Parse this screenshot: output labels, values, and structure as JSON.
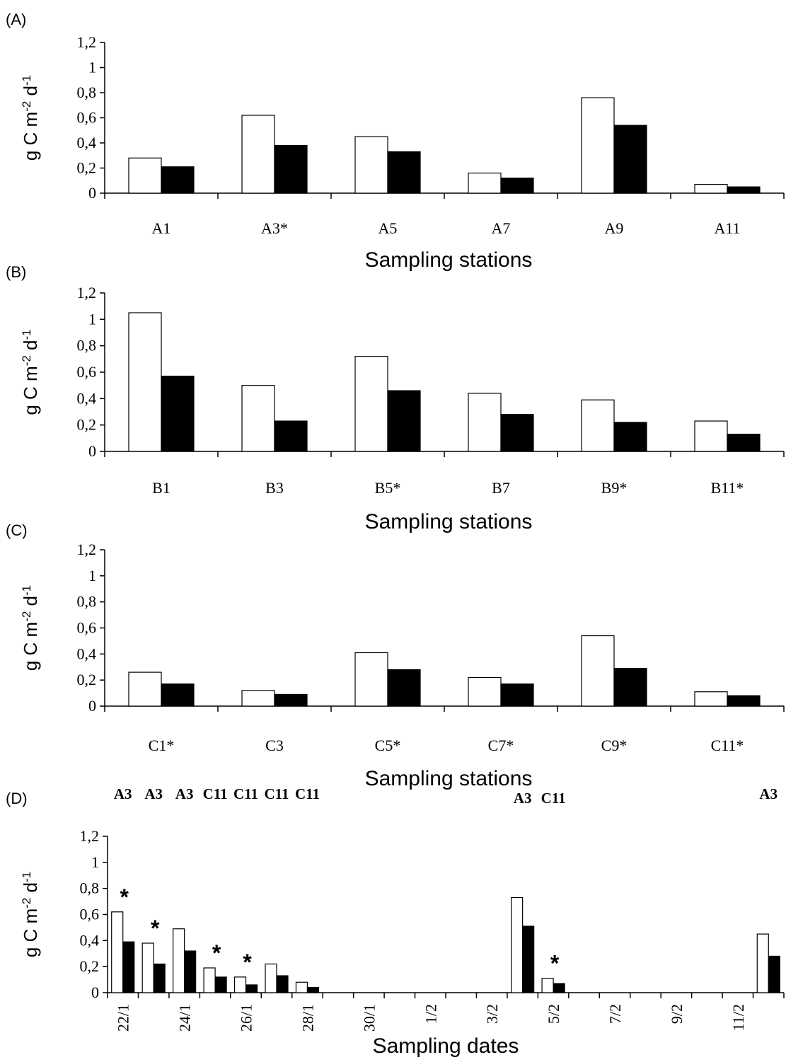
{
  "colors": {
    "open": "#ffffff",
    "filled": "#000000",
    "stroke": "#000000"
  },
  "chart_data": [
    {
      "type": "bar",
      "panel_label": "(A)",
      "categories": [
        "A1",
        "A3*",
        "A5",
        "A7",
        "A9",
        "A11"
      ],
      "series": [
        {
          "values": [
            0.28,
            0.62,
            0.45,
            0.16,
            0.76,
            0.07
          ]
        },
        {
          "values": [
            0.21,
            0.38,
            0.33,
            0.12,
            0.54,
            0.05
          ]
        }
      ],
      "ylabel": "g C m-2 d-1",
      "xlabel": "Sampling stations",
      "ylim": [
        0,
        1.2
      ],
      "yticks": [
        "0",
        "0,2",
        "0,4",
        "0,6",
        "0,8",
        "1",
        "1,2"
      ]
    },
    {
      "type": "bar",
      "panel_label": "(B)",
      "categories": [
        "B1",
        "B3",
        "B5*",
        "B7",
        "B9*",
        "B11*"
      ],
      "series": [
        {
          "values": [
            1.05,
            0.5,
            0.72,
            0.44,
            0.39,
            0.23
          ]
        },
        {
          "values": [
            0.57,
            0.23,
            0.46,
            0.28,
            0.22,
            0.13
          ]
        }
      ],
      "ylabel": "g C m-2 d-1",
      "xlabel": "Sampling stations",
      "ylim": [
        0,
        1.2
      ],
      "yticks": [
        "0",
        "0,2",
        "0,4",
        "0,6",
        "0,8",
        "1",
        "1,2"
      ]
    },
    {
      "type": "bar",
      "panel_label": "(C)",
      "categories": [
        "C1*",
        "C3",
        "C5*",
        "C7*",
        "C9*",
        "C11*"
      ],
      "series": [
        {
          "values": [
            0.26,
            0.12,
            0.41,
            0.22,
            0.54,
            0.11
          ]
        },
        {
          "values": [
            0.17,
            0.09,
            0.28,
            0.17,
            0.29,
            0.08
          ]
        }
      ],
      "ylabel": "g C m-2 d-1",
      "xlabel": "Sampling stations",
      "ylim": [
        0,
        1.2
      ],
      "yticks": [
        "0",
        "0,2",
        "0,4",
        "0,6",
        "0,8",
        "1",
        "1,2"
      ]
    },
    {
      "type": "bar",
      "panel_label": "(D)",
      "date_ticks": [
        "22/1",
        "24/1",
        "26/1",
        "28/1",
        "30/1",
        "1/2",
        "3/2",
        "5/2",
        "7/2",
        "9/2",
        "11/2"
      ],
      "bars": [
        {
          "date": "22/1",
          "station": "A3",
          "open": 0.62,
          "filled": 0.39,
          "star": true
        },
        {
          "date": "23/1",
          "station": "A3",
          "open": 0.38,
          "filled": 0.22,
          "star": true
        },
        {
          "date": "24/1",
          "station": "A3",
          "open": 0.49,
          "filled": 0.32,
          "star": false
        },
        {
          "date": "25/1",
          "station": "C11",
          "open": 0.19,
          "filled": 0.12,
          "star": true
        },
        {
          "date": "26/1",
          "station": "C11",
          "open": 0.12,
          "filled": 0.06,
          "star": true
        },
        {
          "date": "27/1",
          "station": "C11",
          "open": 0.22,
          "filled": 0.13,
          "star": false
        },
        {
          "date": "28/1",
          "station": "C11",
          "open": 0.08,
          "filled": 0.04,
          "star": false
        },
        {
          "date": "4/2",
          "station": "A3",
          "open": 0.73,
          "filled": 0.51,
          "star": false
        },
        {
          "date": "5/2",
          "station": "C11",
          "open": 0.11,
          "filled": 0.07,
          "star": true
        },
        {
          "date": "12/2",
          "station": "A3",
          "open": 0.45,
          "filled": 0.28,
          "star": false
        }
      ],
      "top_labels": [
        "A3",
        "A3",
        "A3",
        "C11",
        "C11",
        "C11",
        "C11",
        "A3",
        "C11",
        "A3"
      ],
      "star_symbol": "*",
      "ylabel": "g C m-2 d-1",
      "xlabel": "Sampling dates",
      "ylim": [
        0,
        1.2
      ],
      "yticks": [
        "0",
        "0,2",
        "0,4",
        "0,6",
        "0,8",
        "1",
        "1,2"
      ]
    }
  ]
}
